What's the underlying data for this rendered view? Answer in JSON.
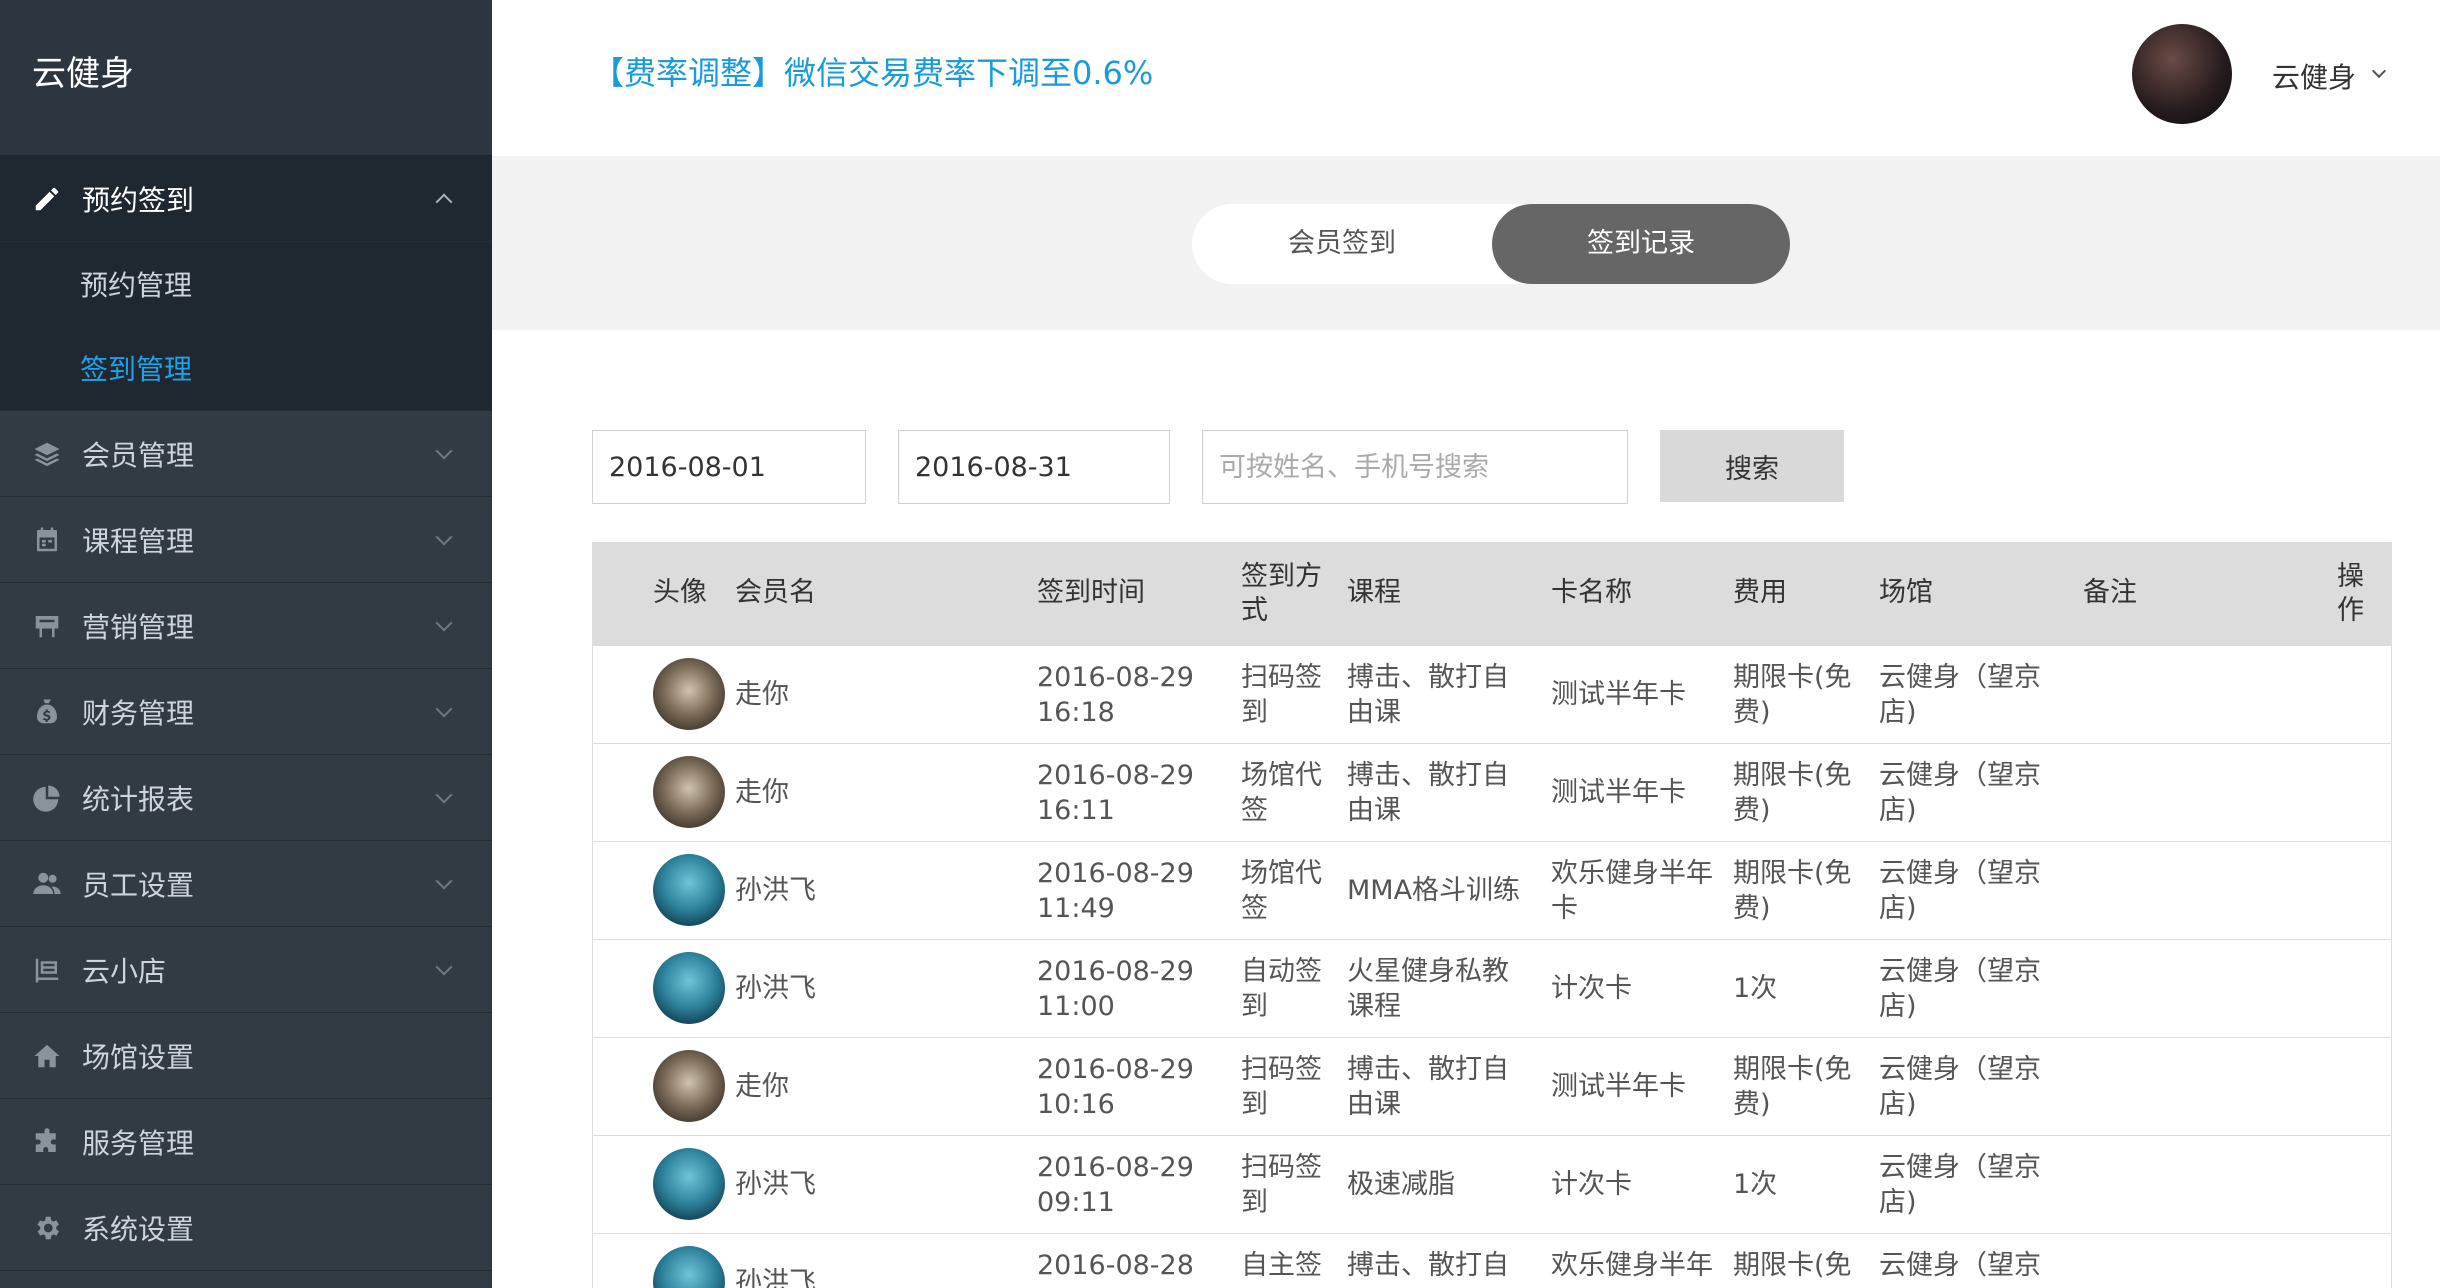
{
  "app": {
    "brand": "云健身"
  },
  "header": {
    "notice": "【费率调整】微信交易费率下调至0.6%",
    "username": "云健身"
  },
  "sidebar": {
    "groups": [
      {
        "label": "预约签到",
        "icon": "pencil-icon",
        "expanded": true,
        "children": [
          {
            "label": "预约管理"
          },
          {
            "label": "签到管理",
            "selected": true
          }
        ]
      },
      {
        "label": "会员管理",
        "icon": "layers-icon"
      },
      {
        "label": "课程管理",
        "icon": "calendar-icon"
      },
      {
        "label": "营销管理",
        "icon": "billboard-icon"
      },
      {
        "label": "财务管理",
        "icon": "money-bag-icon"
      },
      {
        "label": "统计报表",
        "icon": "pie-chart-icon"
      },
      {
        "label": "员工设置",
        "icon": "users-icon"
      },
      {
        "label": "云小店",
        "icon": "shop-icon"
      },
      {
        "label": "场馆设置",
        "icon": "home-icon"
      },
      {
        "label": "服务管理",
        "icon": "puzzle-icon"
      },
      {
        "label": "系统设置",
        "icon": "gear-icon"
      }
    ]
  },
  "tabs": [
    {
      "label": "会员签到"
    },
    {
      "label": "签到记录",
      "selected": true
    }
  ],
  "filters": {
    "start_date": "2016-08-01",
    "end_date": "2016-08-31",
    "search_placeholder": "可按姓名、手机号搜索",
    "search_button": "搜索"
  },
  "table": {
    "headers": {
      "avatar": "头像",
      "name": "会员名",
      "time": "签到时间",
      "method": [
        "签到方",
        "式"
      ],
      "course": "课程",
      "card": "卡名称",
      "fee": "费用",
      "venue": "场馆",
      "remark": "备注",
      "action": [
        "操",
        "作"
      ]
    },
    "rows": [
      {
        "avatar": "a",
        "name": "走你",
        "date": "2016-08-29",
        "time": "16:18",
        "method": [
          "扫码签",
          "到"
        ],
        "course": [
          "搏击、散打自",
          "由课"
        ],
        "card": [
          "测试半年卡"
        ],
        "fee": [
          "期限卡(免",
          "费)"
        ],
        "venue": [
          "云健身（望京",
          "店)"
        ]
      },
      {
        "avatar": "a",
        "name": "走你",
        "date": "2016-08-29",
        "time": "16:11",
        "method": [
          "场馆代",
          "签"
        ],
        "course": [
          "搏击、散打自",
          "由课"
        ],
        "card": [
          "测试半年卡"
        ],
        "fee": [
          "期限卡(免",
          "费)"
        ],
        "venue": [
          "云健身（望京",
          "店)"
        ]
      },
      {
        "avatar": "b",
        "name": "孙洪飞",
        "date": "2016-08-29",
        "time": "11:49",
        "method": [
          "场馆代",
          "签"
        ],
        "course": [
          "MMA格斗训练"
        ],
        "card": [
          "欢乐健身半年",
          "卡"
        ],
        "fee": [
          "期限卡(免",
          "费)"
        ],
        "venue": [
          "云健身（望京",
          "店)"
        ]
      },
      {
        "avatar": "b",
        "name": "孙洪飞",
        "date": "2016-08-29",
        "time": "11:00",
        "method": [
          "自动签",
          "到"
        ],
        "course": [
          "火星健身私教",
          "课程"
        ],
        "card": [
          "计次卡"
        ],
        "fee": [
          "1次"
        ],
        "venue": [
          "云健身（望京",
          "店)"
        ]
      },
      {
        "avatar": "a",
        "name": "走你",
        "date": "2016-08-29",
        "time": "10:16",
        "method": [
          "扫码签",
          "到"
        ],
        "course": [
          "搏击、散打自",
          "由课"
        ],
        "card": [
          "测试半年卡"
        ],
        "fee": [
          "期限卡(免",
          "费)"
        ],
        "venue": [
          "云健身（望京",
          "店)"
        ]
      },
      {
        "avatar": "b",
        "name": "孙洪飞",
        "date": "2016-08-29",
        "time": "09:11",
        "method": [
          "扫码签",
          "到"
        ],
        "course": [
          "极速减脂"
        ],
        "card": [
          "计次卡"
        ],
        "fee": [
          "1次"
        ],
        "venue": [
          "云健身（望京",
          "店)"
        ]
      },
      {
        "avatar": "b",
        "name": "孙洪飞",
        "date": "2016-08-28",
        "time": "",
        "method": [
          "自主签",
          ""
        ],
        "course": [
          "搏击、散打自",
          ""
        ],
        "card": [
          "欢乐健身半年",
          ""
        ],
        "fee": [
          "期限卡(免",
          ""
        ],
        "venue": [
          "云健身（望京",
          ""
        ]
      }
    ]
  }
}
